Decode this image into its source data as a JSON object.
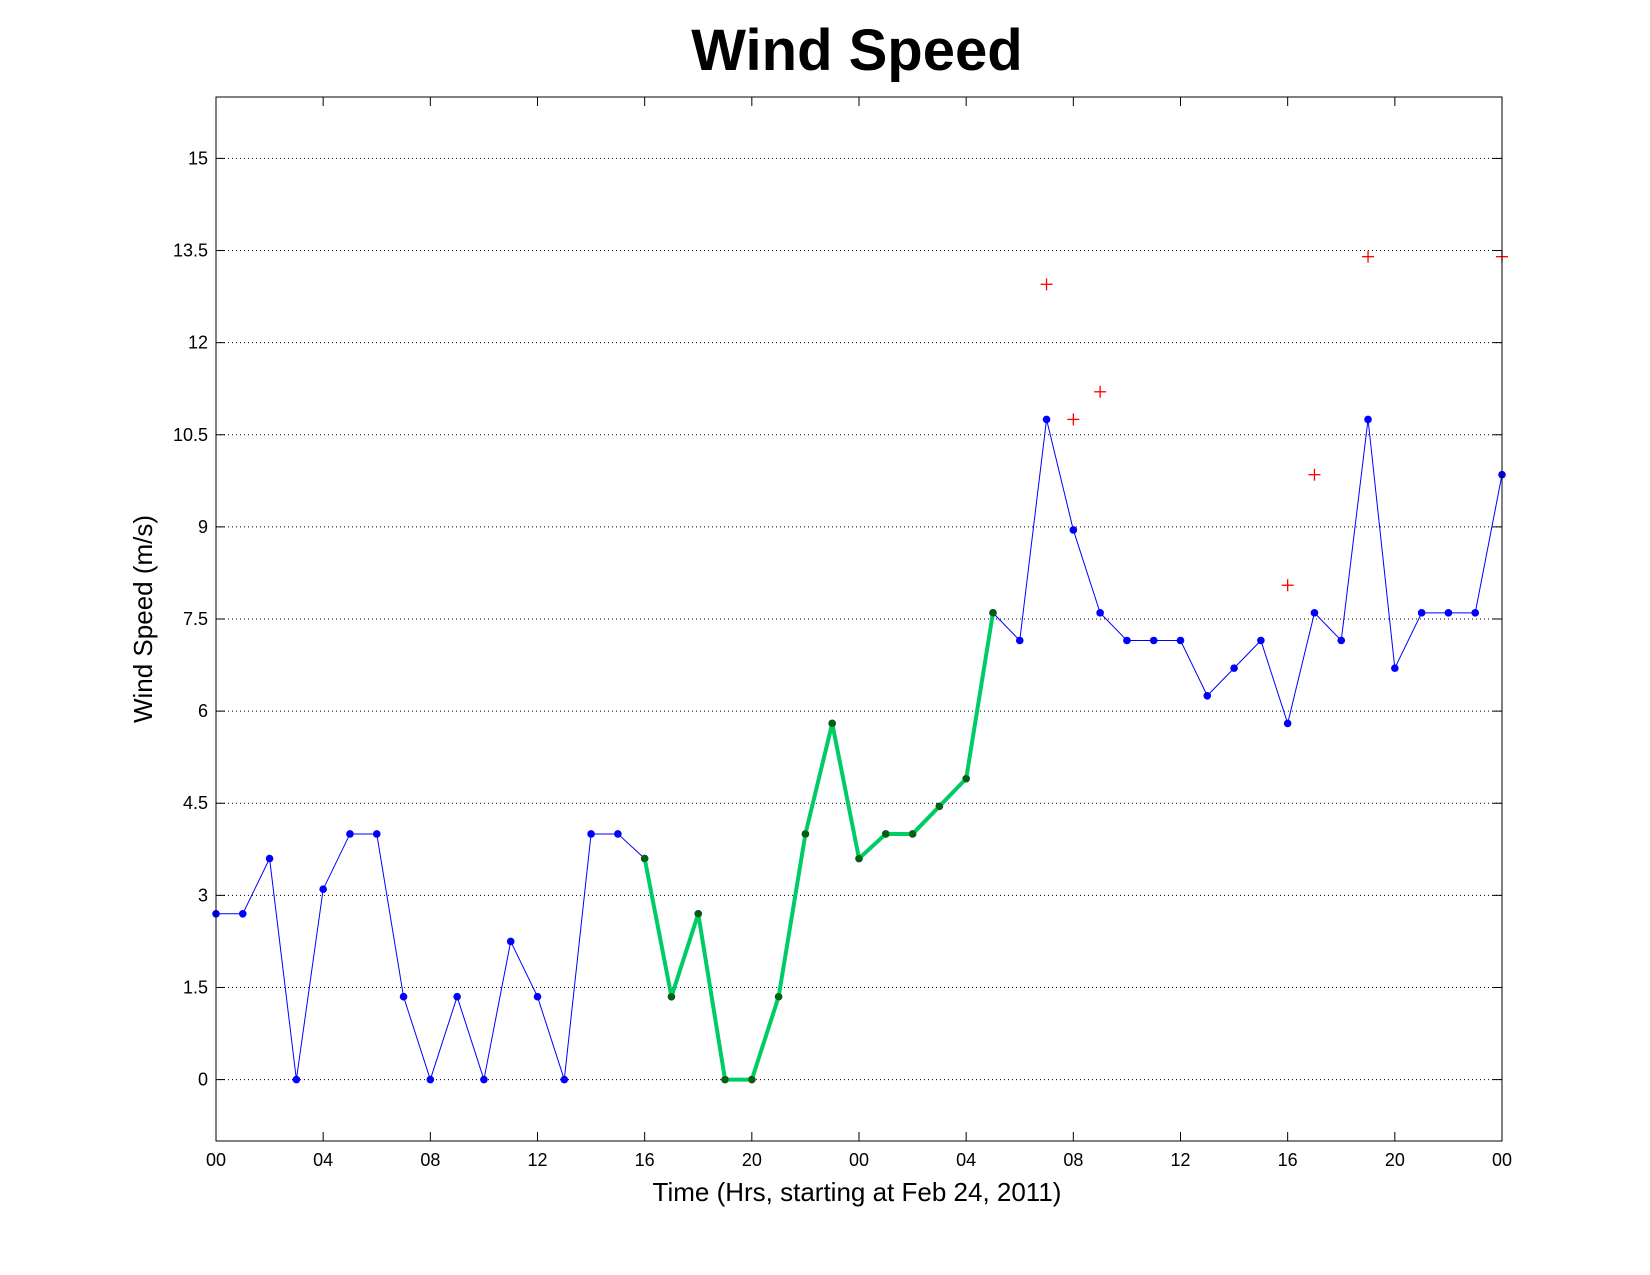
{
  "chart_data": {
    "type": "line",
    "title": "Wind Speed",
    "xlabel": "Time (Hrs, starting at Feb 24, 2011)",
    "ylabel": "Wind Speed (m/s)",
    "x_tick_labels": [
      "00",
      "04",
      "08",
      "12",
      "16",
      "20",
      "00",
      "04",
      "08",
      "12",
      "16",
      "20",
      "00"
    ],
    "x_tick_hours": [
      0,
      4,
      8,
      12,
      16,
      20,
      24,
      28,
      32,
      36,
      40,
      44,
      48
    ],
    "xlim": [
      0,
      48
    ],
    "ylim": [
      -1,
      16
    ],
    "y_ticks": [
      0,
      1.5,
      3,
      4.5,
      6,
      7.5,
      9,
      10.5,
      12,
      13.5,
      15
    ],
    "y_tick_labels": [
      "0",
      "1.5",
      "3",
      "4.5",
      "6",
      "7.5",
      "9",
      "10.5",
      "12",
      "13.5",
      "15"
    ],
    "grid": "horizontal dotted",
    "series": [
      {
        "role": "measured",
        "color": "#0000ff",
        "x": [
          0,
          1,
          2,
          3,
          4,
          5,
          6,
          7,
          8,
          9,
          10,
          11,
          12,
          13,
          14,
          15,
          16,
          17,
          18,
          19,
          20,
          21,
          22,
          23,
          24,
          25,
          26,
          27,
          28,
          29,
          30,
          31,
          32,
          33,
          34,
          35,
          36,
          37,
          38,
          39,
          40,
          41,
          42,
          43,
          44,
          45,
          46,
          47,
          48
        ],
        "y": [
          2.7,
          2.7,
          3.6,
          0,
          3.1,
          4.0,
          4.0,
          1.35,
          0,
          1.35,
          0,
          2.25,
          1.35,
          0,
          4.0,
          4.0,
          3.6,
          1.35,
          2.7,
          0,
          0,
          1.35,
          4.0,
          5.8,
          3.6,
          4.0,
          4.0,
          4.45,
          4.9,
          7.6,
          7.15,
          10.75,
          8.95,
          7.6,
          7.15,
          7.15,
          7.15,
          6.25,
          6.7,
          7.15,
          5.8,
          7.6,
          7.15,
          10.75,
          6.7,
          7.6,
          7.6,
          7.6,
          9.85
        ]
      },
      {
        "role": "highlighted",
        "color": "#00cc66",
        "x": [
          16,
          17,
          18,
          19,
          20,
          21,
          22,
          23,
          24,
          25,
          26,
          27,
          28,
          29
        ],
        "y": [
          3.6,
          1.35,
          2.7,
          0,
          0,
          1.35,
          4.0,
          5.8,
          3.6,
          4.0,
          4.0,
          4.45,
          4.9,
          7.6
        ]
      },
      {
        "role": "gusts",
        "color": "#ff0000",
        "marker": "+",
        "x": [
          31,
          32,
          33,
          40,
          41,
          43,
          48
        ],
        "y": [
          12.95,
          10.75,
          11.2,
          8.05,
          9.85,
          13.4,
          13.4
        ]
      }
    ]
  }
}
